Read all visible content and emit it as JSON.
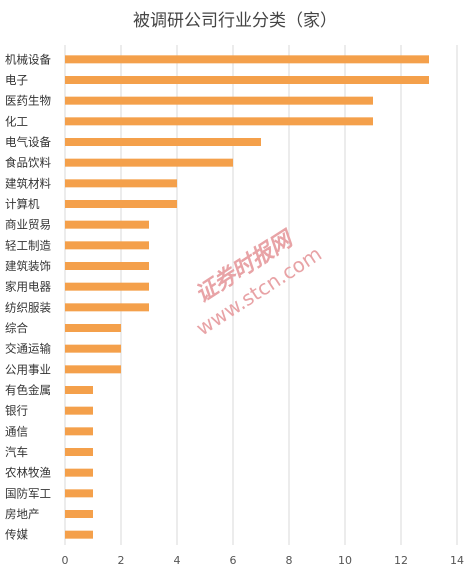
{
  "chart_data": {
    "type": "bar",
    "orientation": "horizontal",
    "title": "被调研公司行业分类（家）",
    "categories": [
      "机械设备",
      "电子",
      "医药生物",
      "化工",
      "电气设备",
      "食品饮料",
      "建筑材料",
      "计算机",
      "商业贸易",
      "轻工制造",
      "建筑装饰",
      "家用电器",
      "纺织服装",
      "综合",
      "交通运输",
      "公用事业",
      "有色金属",
      "银行",
      "通信",
      "汽车",
      "农林牧渔",
      "国防军工",
      "房地产",
      "传媒"
    ],
    "values": [
      13,
      13,
      11,
      11,
      7,
      6,
      4,
      4,
      3,
      3,
      3,
      3,
      3,
      2,
      2,
      2,
      1,
      1,
      1,
      1,
      1,
      1,
      1,
      1
    ],
    "xlim": [
      0,
      14
    ],
    "xticks": [
      "0",
      "2",
      "4",
      "6",
      "8",
      "10",
      "12",
      "14"
    ],
    "grid": true,
    "bar_color": "#F4A04B"
  },
  "watermark": {
    "brand": "证券时报网",
    "url": "www.stcn.com"
  }
}
